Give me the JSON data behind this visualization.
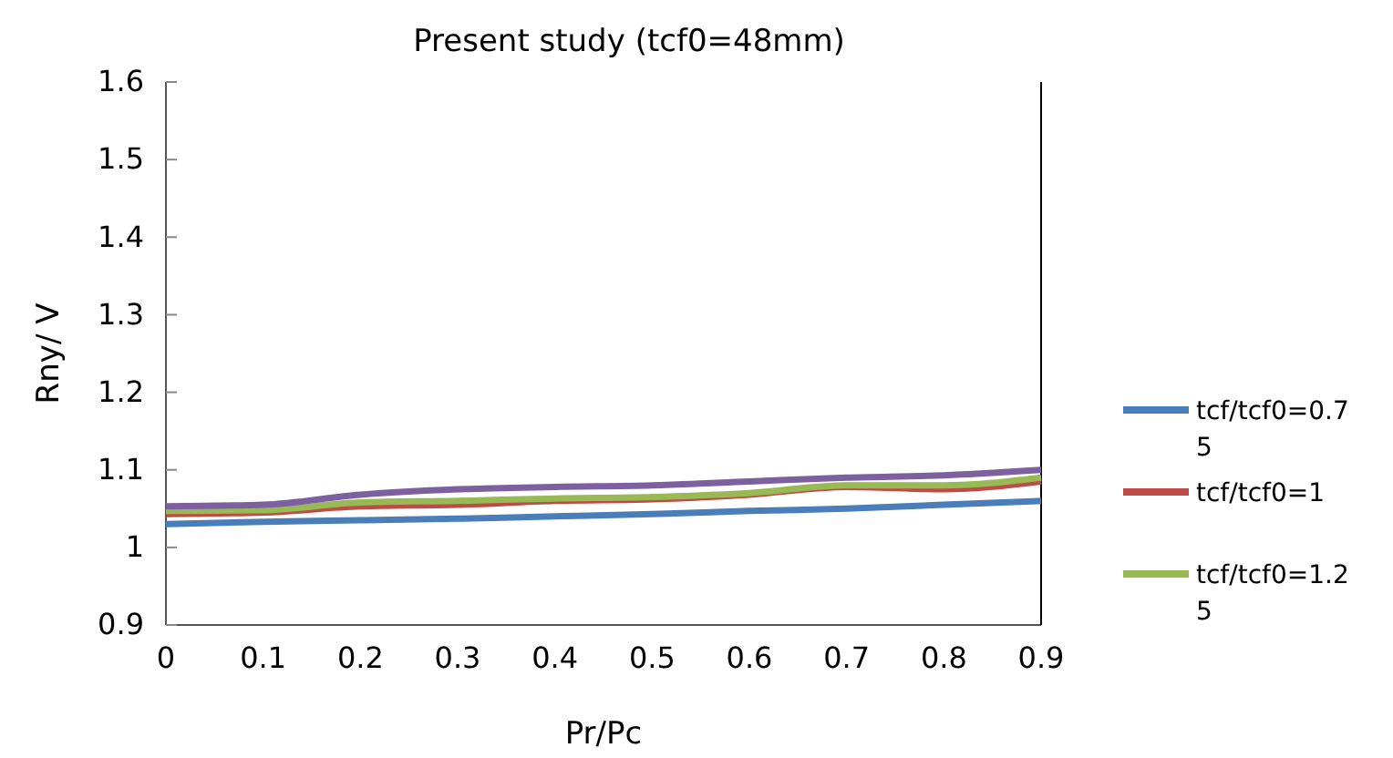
{
  "chart_data": {
    "type": "line",
    "title": "Present study (tcf0=48mm)",
    "xlabel": "Pr/Pc",
    "ylabel": "Rny/ V",
    "x": [
      0,
      0.1,
      0.2,
      0.3,
      0.4,
      0.5,
      0.6,
      0.7,
      0.8,
      0.9
    ],
    "xlim": [
      0,
      0.9
    ],
    "xticks": [
      0,
      0.1,
      0.2,
      0.3,
      0.4,
      0.5,
      0.6,
      0.7,
      0.8,
      0.9
    ],
    "ylim": [
      0.9,
      1.6
    ],
    "yticks": [
      0.9,
      1,
      1.1,
      1.2,
      1.3,
      1.4,
      1.5,
      1.6
    ],
    "grid": false,
    "legend": "right",
    "marker": "none",
    "line_style": "solid",
    "series": [
      {
        "name": "tcf/tcf0=0.75",
        "color": "#4a7ebb",
        "values": [
          1.03,
          1.033,
          1.035,
          1.037,
          1.04,
          1.043,
          1.047,
          1.05,
          1.055,
          1.06
        ]
      },
      {
        "name": "tcf/tcf0=1",
        "color": "#be4b48",
        "values": [
          1.043,
          1.045,
          1.053,
          1.055,
          1.06,
          1.062,
          1.068,
          1.078,
          1.075,
          1.085
        ]
      },
      {
        "name": "tcf/tcf0=1.25",
        "color": "#98b954",
        "values": [
          1.047,
          1.048,
          1.058,
          1.06,
          1.063,
          1.065,
          1.07,
          1.08,
          1.08,
          1.09
        ]
      },
      {
        "color": "#7d60a0",
        "values": [
          1.053,
          1.055,
          1.068,
          1.075,
          1.078,
          1.08,
          1.085,
          1.09,
          1.093,
          1.1
        ]
      }
    ]
  }
}
